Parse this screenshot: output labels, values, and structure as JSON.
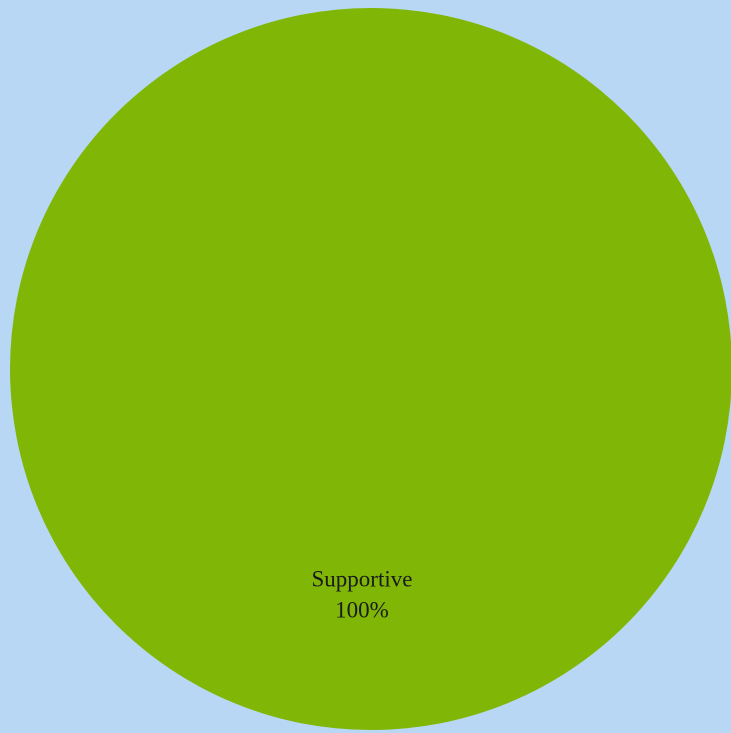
{
  "chart_data": {
    "type": "pie",
    "categories": [
      "Supportive"
    ],
    "values": [
      100
    ],
    "value_labels": [
      "100%"
    ],
    "colors": [
      "#80b706"
    ]
  }
}
